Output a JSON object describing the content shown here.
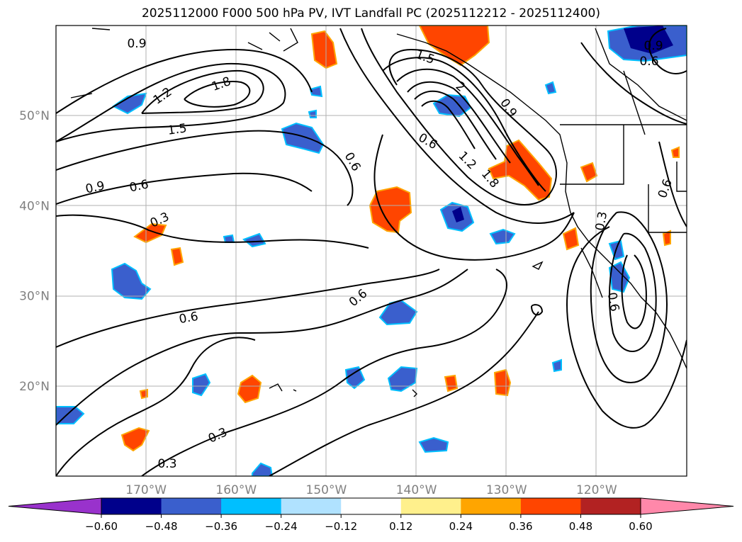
{
  "title": "2025112000 F000 500 hPa PV, IVT Landfall PC (2025112212 - 2025112400)",
  "map": {
    "lon_range": [
      -180,
      -110
    ],
    "lat_range": [
      10,
      60
    ],
    "lat_labels": [
      "50°N",
      "40°N",
      "30°N",
      "20°N"
    ],
    "lat_values": [
      50,
      40,
      30,
      20
    ],
    "lon_labels": [
      "170°W",
      "160°W",
      "150°W",
      "140°W",
      "130°W",
      "120°W"
    ],
    "lon_values": [
      -170,
      -160,
      -150,
      -140,
      -130,
      -120
    ],
    "tick_label_color": "#808080",
    "grid": true,
    "contour_labels": [
      "0.9",
      "1.2",
      "1.8",
      "1.5",
      "0.9",
      "0.6",
      "0.6",
      "0.3",
      "1.5",
      "2",
      "0.6",
      "1.2",
      "1.8",
      "0.9",
      "0.6",
      "0.6",
      "0.6",
      "0.3",
      "0.3",
      "0.6",
      "0.3",
      "0.9",
      "0.6"
    ]
  },
  "colorbar": {
    "ticks": [
      "−0.60",
      "−0.48",
      "−0.36",
      "−0.24",
      "−0.12",
      "0.12",
      "0.24",
      "0.36",
      "0.48",
      "0.60"
    ],
    "colors": [
      "#9932cc",
      "#00008b",
      "#3a5fcd",
      "#00bfff",
      "#b0e2ff",
      "#ffffff",
      "#fff08c",
      "#ffa500",
      "#ff4500",
      "#b22222",
      "#ff88aa"
    ]
  }
}
